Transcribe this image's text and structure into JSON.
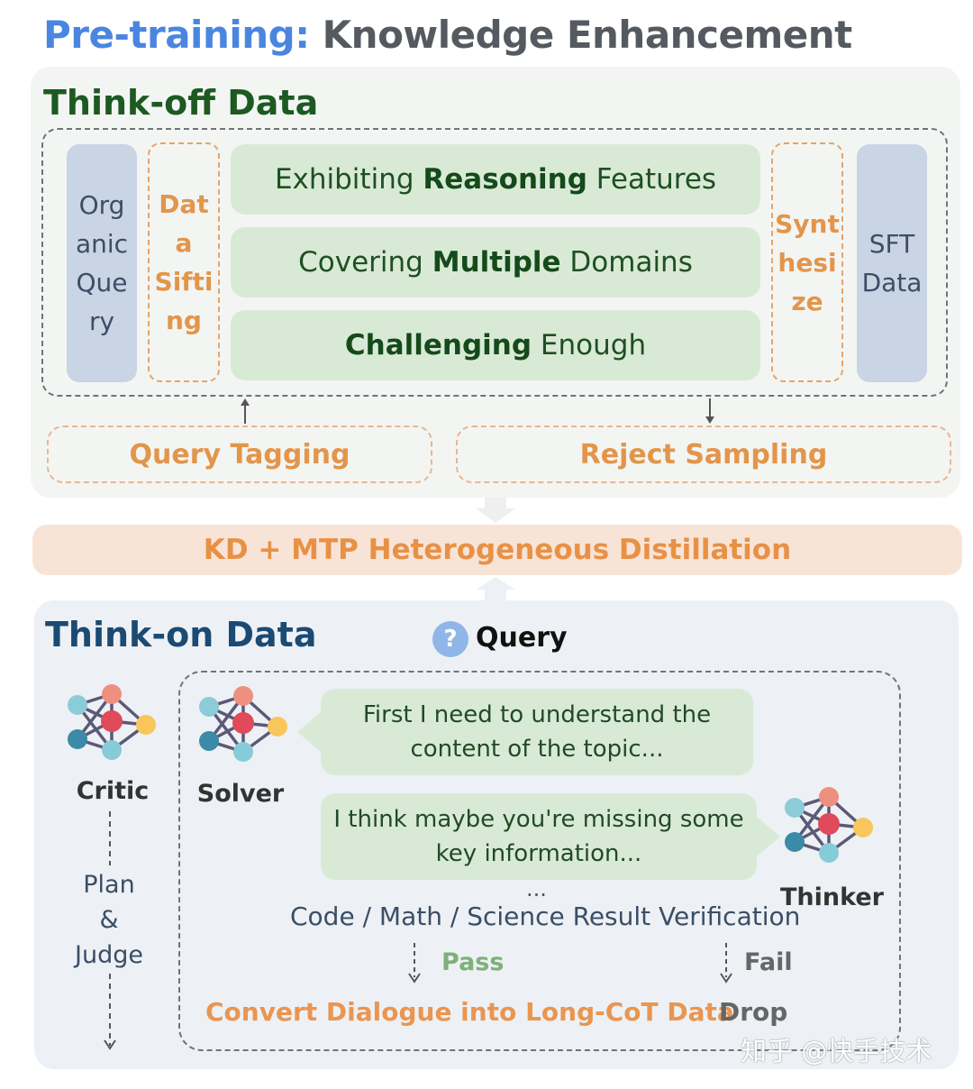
{
  "title": {
    "part1": "Pre-training:",
    "part2": "Knowledge Enhancement"
  },
  "think_off": {
    "heading": "Think-off Data",
    "organic_query": [
      "Org",
      "anic",
      "Que",
      "ry"
    ],
    "data_sifting": [
      "Dat",
      "a",
      "Sifti",
      "ng"
    ],
    "features": [
      {
        "pre": "Exhibiting ",
        "bold": "Reasoning",
        "post": " Features"
      },
      {
        "pre": "Covering ",
        "bold": "Multiple",
        "post": " Domains"
      },
      {
        "pre": "",
        "bold": "Challenging",
        "post": " Enough"
      }
    ],
    "synthesize": [
      "Synt",
      "hesi",
      "ze"
    ],
    "sft_data": [
      "SFT",
      "Data"
    ],
    "query_tagging": "Query Tagging",
    "reject_sampling": "Reject Sampling"
  },
  "distillation": "KD + MTP Heterogeneous Distillation",
  "think_on": {
    "heading": "Think-on Data",
    "query_icon": "?",
    "query_label": "Query",
    "critic_label": "Critic",
    "solver_label": "Solver",
    "thinker_label": "Thinker",
    "plan_judge": [
      "Plan",
      "&",
      "Judge"
    ],
    "bubble_solver": [
      "First I need to understand the",
      "content of the topic..."
    ],
    "bubble_thinker": [
      "I think maybe you're missing some",
      "key information..."
    ],
    "ellipsis": "...",
    "verification": "Code / Math / Science Result Verification",
    "pass": "Pass",
    "fail": "Fail",
    "convert": "Convert Dialogue into Long-CoT Data",
    "drop": "Drop"
  },
  "watermark": "知乎 @快手技术",
  "colors": {
    "blue_title": "#4a86e0",
    "green_heading": "#1c5a22",
    "orange": "#e3954a",
    "navy_heading": "#1b4a72",
    "pass_green": "#7fb07a"
  },
  "icons": {
    "network": "network-graph-icon",
    "question": "question-circle-icon"
  }
}
